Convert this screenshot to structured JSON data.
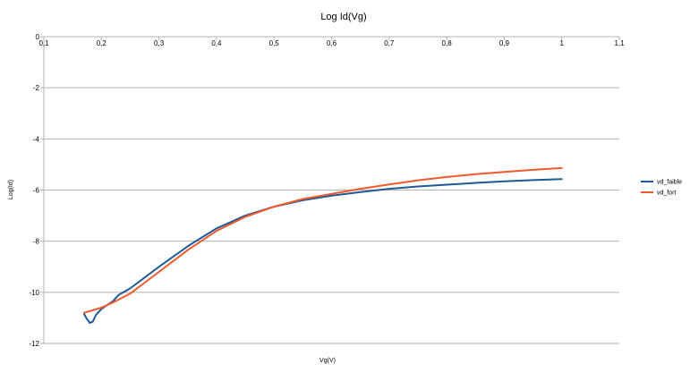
{
  "chart_data": {
    "type": "line",
    "title": "Log Id(Vg)",
    "xlabel": "Vg(V)",
    "ylabel": "Log(Id)",
    "xlim": [
      0.1,
      1.1
    ],
    "ylim": [
      -12,
      0
    ],
    "x_ticks": [
      "0,1",
      "0,2",
      "0,3",
      "0,4",
      "0,5",
      "0,6",
      "0,7",
      "0,8",
      "0,9",
      "1",
      "1,1"
    ],
    "x_tick_values": [
      0.1,
      0.2,
      0.3,
      0.4,
      0.5,
      0.6,
      0.7,
      0.8,
      0.9,
      1.0,
      1.1
    ],
    "y_ticks": [
      "0",
      "-2",
      "-4",
      "-6",
      "-8",
      "-10",
      "-12"
    ],
    "y_tick_values": [
      0,
      -2,
      -4,
      -6,
      -8,
      -10,
      -12
    ],
    "grid": "horizontal",
    "legend_position": "right",
    "series": [
      {
        "name": "vd_faible",
        "color": "#1f5a96",
        "x": [
          0.17,
          0.175,
          0.18,
          0.185,
          0.19,
          0.2,
          0.22,
          0.23,
          0.25,
          0.3,
          0.35,
          0.4,
          0.45,
          0.5,
          0.55,
          0.6,
          0.65,
          0.7,
          0.75,
          0.8,
          0.85,
          0.9,
          0.95,
          1.0
        ],
        "y": [
          -10.85,
          -11.05,
          -11.2,
          -11.15,
          -10.9,
          -10.65,
          -10.35,
          -10.1,
          -9.85,
          -9.0,
          -8.2,
          -7.5,
          -7.0,
          -6.65,
          -6.4,
          -6.22,
          -6.08,
          -5.95,
          -5.86,
          -5.79,
          -5.72,
          -5.66,
          -5.61,
          -5.57
        ]
      },
      {
        "name": "vd_fort",
        "color": "#f2592a",
        "x": [
          0.17,
          0.2,
          0.22,
          0.25,
          0.3,
          0.35,
          0.4,
          0.45,
          0.5,
          0.55,
          0.6,
          0.65,
          0.7,
          0.75,
          0.8,
          0.85,
          0.9,
          0.95,
          1.0
        ],
        "y": [
          -10.8,
          -10.6,
          -10.4,
          -10.05,
          -9.2,
          -8.35,
          -7.6,
          -7.05,
          -6.65,
          -6.35,
          -6.15,
          -5.95,
          -5.78,
          -5.62,
          -5.49,
          -5.38,
          -5.29,
          -5.21,
          -5.14
        ]
      }
    ]
  }
}
